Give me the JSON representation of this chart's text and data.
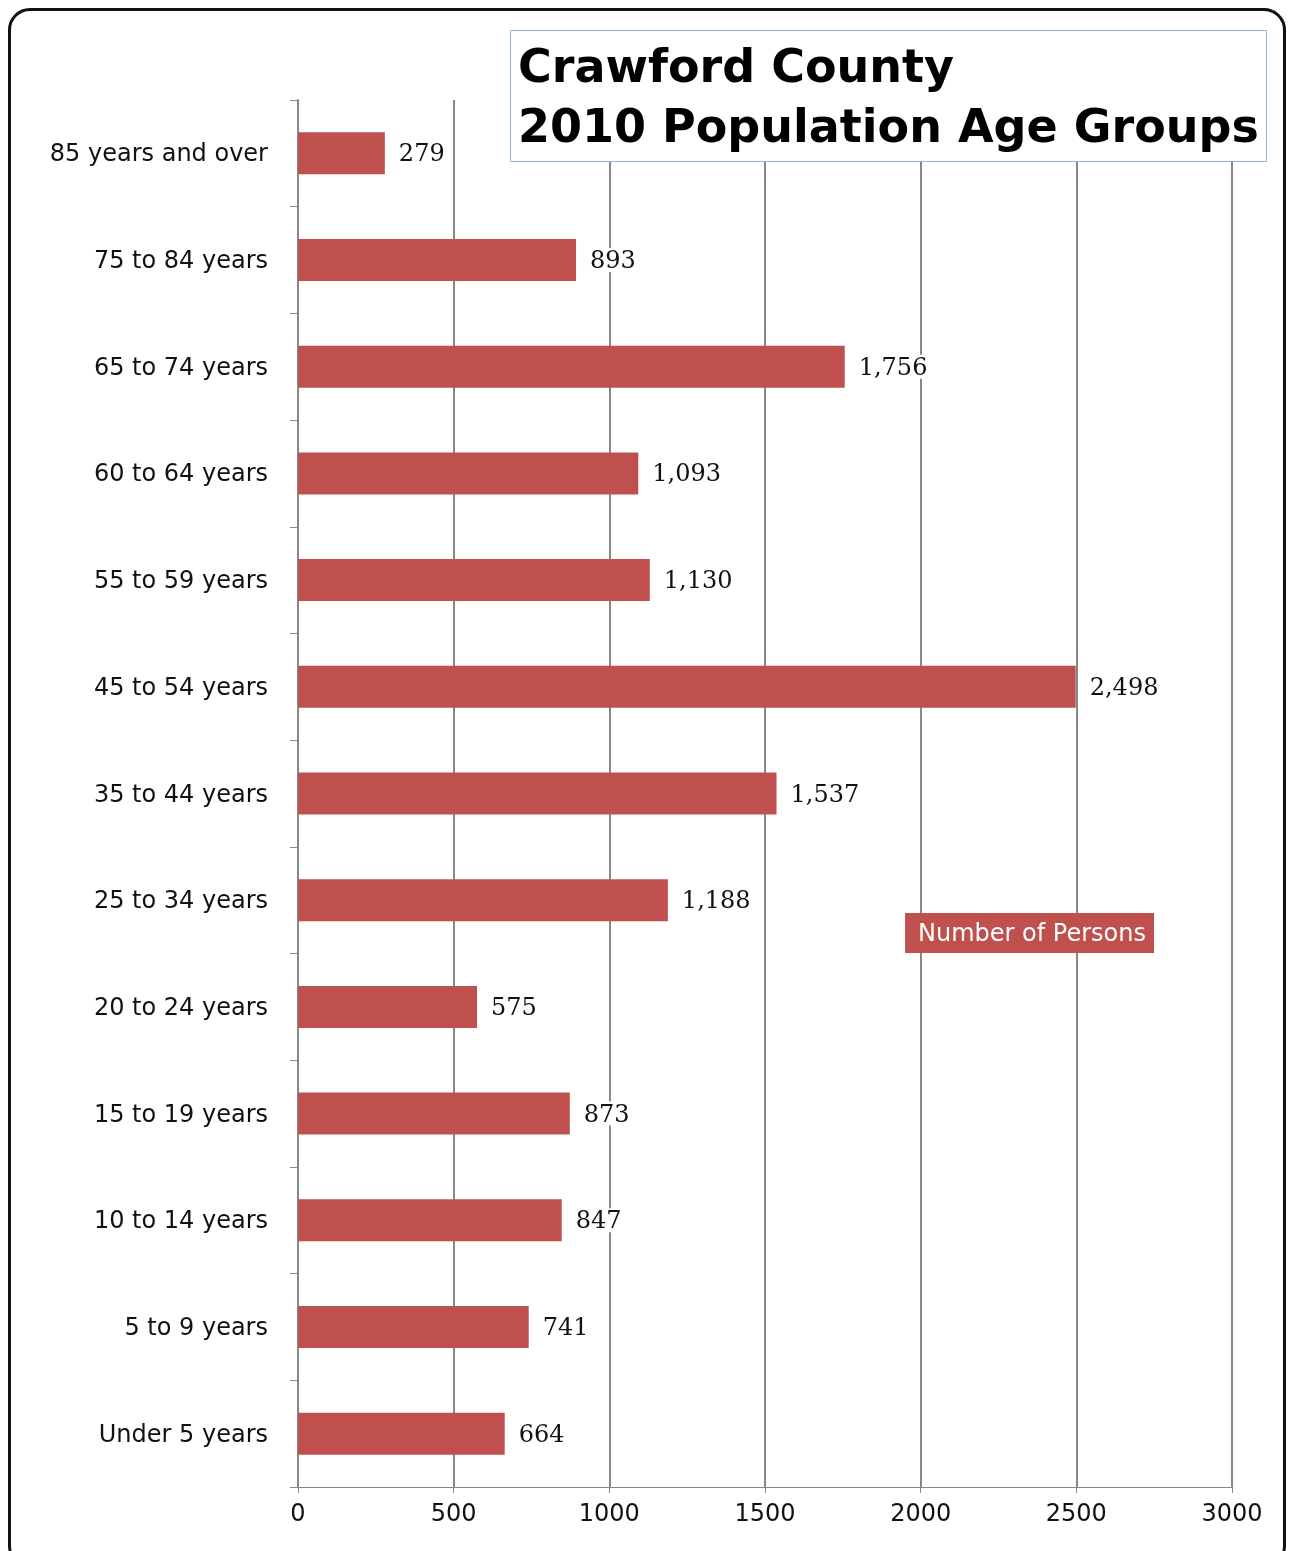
{
  "chart_data": {
    "type": "bar",
    "orientation": "horizontal",
    "title": "Crawford County\n2010 Population Age Groups",
    "categories": [
      "85 years and over",
      "75 to 84 years",
      "65 to 74 years",
      "60 to 64 years",
      "55 to 59 years",
      "45 to 54 years",
      "35 to 44 years",
      "25 to 34 years",
      "20 to 24 years",
      "15 to 19 years",
      "10 to 14 years",
      "5 to 9 years",
      "Under 5 years"
    ],
    "series": [
      {
        "name": "Number of Persons",
        "color": "#c0504d",
        "values": [
          279,
          893,
          1756,
          1093,
          1130,
          2498,
          1537,
          1188,
          575,
          873,
          847,
          741,
          664
        ],
        "value_labels": [
          "279",
          "893",
          "1,756",
          "1,093",
          "1,130",
          "2,498",
          "1,537",
          "1,188",
          "575",
          "873",
          "847",
          "741",
          "664"
        ]
      }
    ],
    "xlim": [
      0,
      3000
    ],
    "xticks": [
      0,
      500,
      1000,
      1500,
      2000,
      2500,
      3000
    ],
    "grid": "x",
    "legend": "right"
  }
}
